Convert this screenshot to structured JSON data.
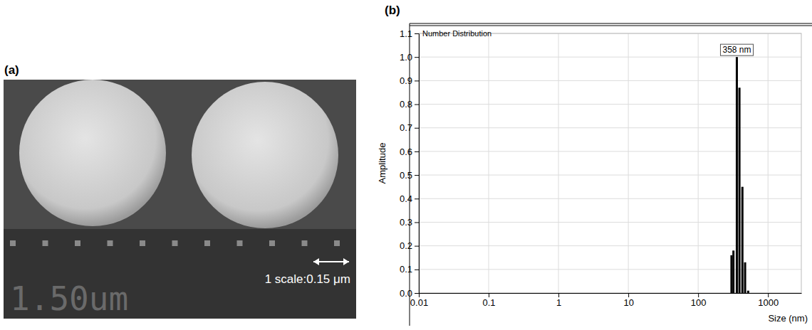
{
  "chart_data": {
    "type": "bar",
    "panel_label": "(b)",
    "title": "Number Distribution",
    "x_label": "Size (nm)",
    "y_label": "Amplitude",
    "log": "x",
    "grid": true,
    "xlim": [
      0.01,
      3000
    ],
    "xticks": [
      0.01,
      0.1,
      1,
      10,
      100,
      1000
    ],
    "ylim": [
      0,
      1.1
    ],
    "yticks": [
      {
        "value": 0,
        "label": "0.0"
      },
      0.1,
      0.2,
      0.3,
      0.4,
      0.5,
      0.6,
      0.7,
      0.8,
      0.9,
      {
        "value": 1,
        "label": "1.0"
      },
      1.1
    ],
    "x": [
      300,
      320,
      358,
      390,
      430,
      470,
      520
    ],
    "values": [
      0.16,
      0.18,
      1.0,
      0.87,
      0.45,
      0.13,
      0.01
    ],
    "color": "#000000",
    "annotations": [
      {
        "text": "358 nm",
        "x": 358,
        "y": 1.0
      }
    ]
  },
  "image": {
    "panel_label": "(a)",
    "scale_text": "1.50um",
    "scale_note": "1 scale:0.15 μm"
  }
}
